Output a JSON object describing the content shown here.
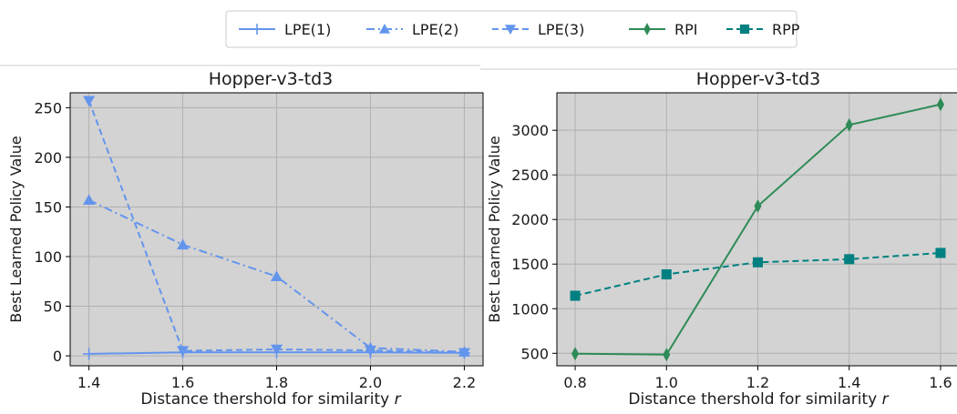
{
  "legend": {
    "placement": "top-center",
    "entries": [
      {
        "label": "LPE(1)",
        "color": "#6495ED",
        "marker": "plus",
        "dash": "solid"
      },
      {
        "label": "LPE(2)",
        "color": "#6495ED",
        "marker": "triangle-up",
        "dash": "dashdot"
      },
      {
        "label": "LPE(3)",
        "color": "#6495ED",
        "marker": "triangle-down",
        "dash": "dashed"
      },
      {
        "label": "RPI",
        "color": "#2E8B57",
        "marker": "thin-diamond",
        "dash": "solid"
      },
      {
        "label": "RPP",
        "color": "#008080",
        "marker": "square",
        "dash": "dashed"
      }
    ]
  },
  "chart_data": [
    {
      "type": "line",
      "title": "Hopper-v3-td3",
      "xlabel": "Distance thershold for similarity",
      "xlabel_var": "r",
      "ylabel": "Best Learned Policy Value",
      "x": [
        1.4,
        1.6,
        1.8,
        2.0,
        2.2
      ],
      "xticks": [
        "1.4",
        "1.6",
        "1.8",
        "2.0",
        "2.2"
      ],
      "yticks": [
        "0",
        "50",
        "100",
        "150",
        "200",
        "250"
      ],
      "xlim": [
        1.36,
        2.24
      ],
      "ylim": [
        -10,
        265
      ],
      "grid": true,
      "background": "#d3d3d3",
      "series": [
        {
          "name": "LPE(1)",
          "values": [
            2,
            3.5,
            3.5,
            3.5,
            3
          ],
          "color": "#6495ED",
          "marker": "plus",
          "dash": "solid"
        },
        {
          "name": "LPE(2)",
          "values": [
            157,
            112,
            80,
            8,
            4
          ],
          "color": "#6495ED",
          "marker": "triangle-up",
          "dash": "dashdot"
        },
        {
          "name": "LPE(3)",
          "values": [
            257,
            5,
            6.5,
            5.5,
            3
          ],
          "color": "#6495ED",
          "marker": "triangle-down",
          "dash": "dashed"
        }
      ]
    },
    {
      "type": "line",
      "title": "Hopper-v3-td3",
      "xlabel": "Distance thershold for similarity",
      "xlabel_var": "r",
      "ylabel": "Best Learned Policy Value",
      "x": [
        0.8,
        1.0,
        1.2,
        1.4,
        1.6
      ],
      "xticks": [
        "0.8",
        "1.0",
        "1.2",
        "1.4",
        "1.6"
      ],
      "yticks": [
        "500",
        "1000",
        "1500",
        "2000",
        "2500",
        "3000"
      ],
      "xlim": [
        0.76,
        1.64
      ],
      "ylim": [
        360,
        3420
      ],
      "grid": true,
      "background": "#d3d3d3",
      "series": [
        {
          "name": "RPI",
          "values": [
            495,
            485,
            2150,
            3060,
            3290
          ],
          "color": "#2E8B57",
          "marker": "thin-diamond",
          "dash": "solid"
        },
        {
          "name": "RPP",
          "values": [
            1145,
            1385,
            1520,
            1555,
            1625
          ],
          "color": "#008080",
          "marker": "square",
          "dash": "dashed"
        }
      ]
    }
  ]
}
